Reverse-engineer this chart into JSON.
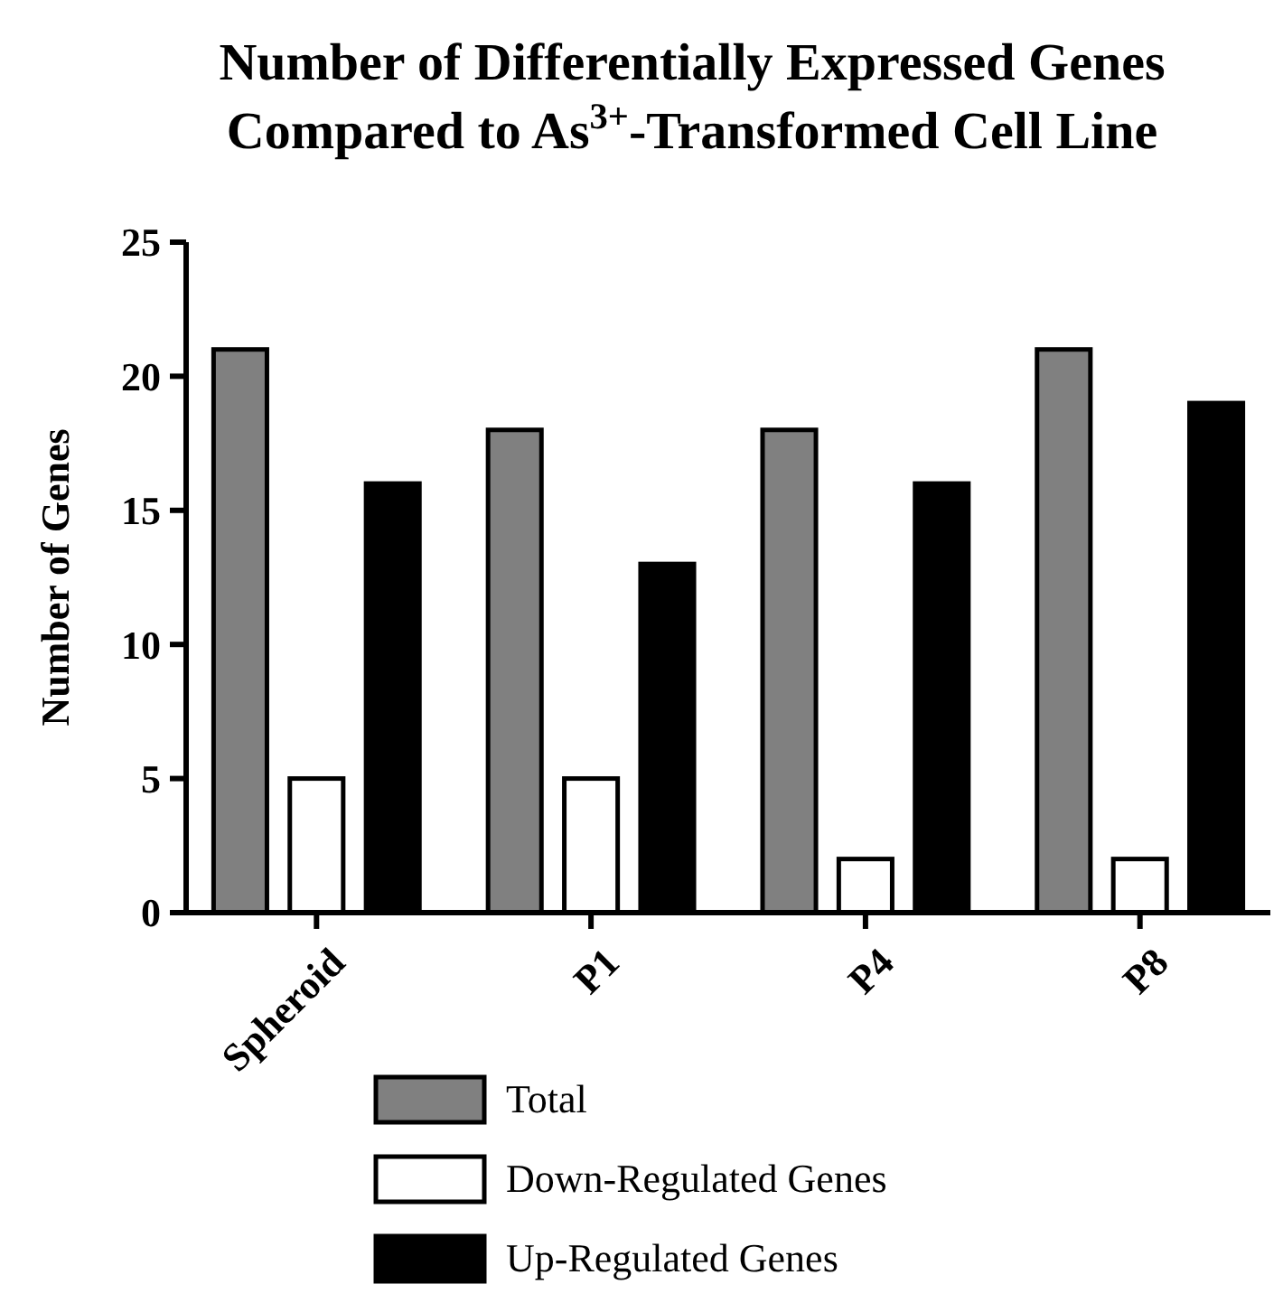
{
  "chart_data": {
    "type": "bar",
    "title": "Number of  Differentially  Expressed Genes\nCompared to As$^{3+}$-Transformed Cell  Line",
    "ylabel": "Number of Genes",
    "categories": [
      "Spheroid",
      "P1",
      "P4",
      "P8"
    ],
    "series": [
      {
        "name": "Total",
        "color": "#808080",
        "values": [
          21,
          18,
          18,
          21
        ]
      },
      {
        "name": "Down-Regulated Genes",
        "color": "#ffffff",
        "values": [
          5,
          5,
          2,
          2
        ]
      },
      {
        "name": "Up-Regulated Genes",
        "color": "#000000",
        "values": [
          16,
          13,
          16,
          19
        ]
      }
    ],
    "ylim": [
      0,
      25
    ],
    "yticks": [
      0,
      5,
      10,
      15,
      20,
      25
    ],
    "grid": false,
    "legend": "bottom"
  }
}
